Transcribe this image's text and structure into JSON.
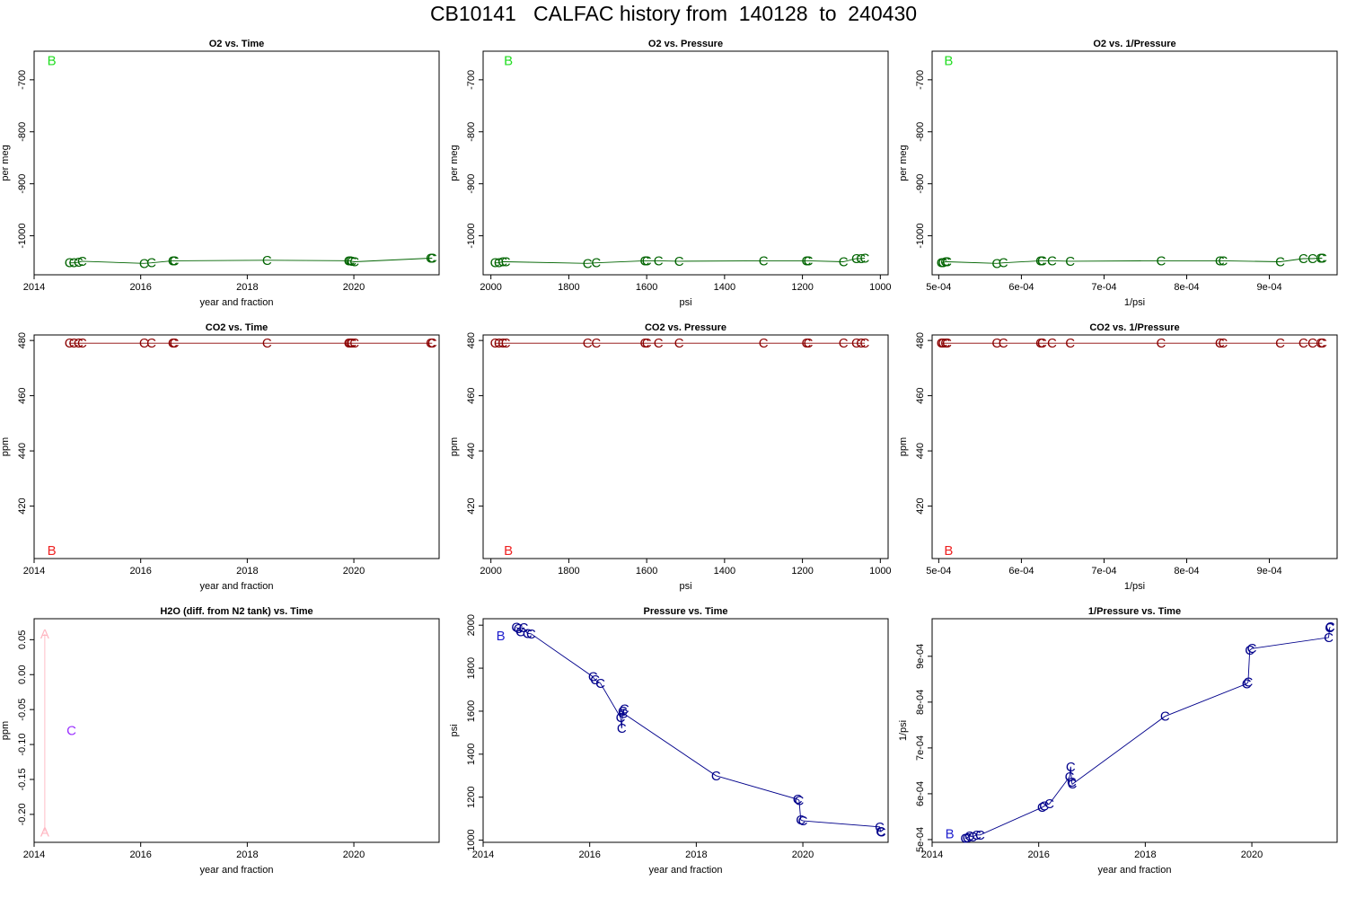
{
  "title": "CB10141   CALFAC history from  140128  to  240430",
  "chart_data": [
    {
      "id": "o2-time",
      "type": "scatter",
      "title": "O2 vs. Time",
      "xlabel": "year and fraction",
      "ylabel": "per meg",
      "xlim": [
        2014,
        2021.6
      ],
      "ylim": [
        -1075,
        -645
      ],
      "xticks": [
        2014,
        2016,
        2018,
        2020
      ],
      "yticks": [
        -700,
        -800,
        -900,
        -1000
      ],
      "rotate_ytick_labels": true,
      "color": "#006400",
      "series": [
        {
          "label": "B",
          "color": "#22dd22",
          "line": false,
          "points": [
            [
              2014.33,
              -663
            ]
          ]
        },
        {
          "label": "C",
          "line": true,
          "points": [
            [
              2014.66,
              -1052
            ],
            [
              2014.74,
              -1052
            ],
            [
              2014.83,
              -1051
            ],
            [
              2014.9,
              -1049
            ],
            [
              2016.06,
              -1053
            ],
            [
              2016.2,
              -1052
            ],
            [
              2016.6,
              -1048
            ],
            [
              2016.63,
              -1048
            ],
            [
              2018.37,
              -1047
            ],
            [
              2019.9,
              -1048
            ],
            [
              2019.93,
              -1048
            ],
            [
              2019.96,
              -1049
            ],
            [
              2020.01,
              -1050
            ],
            [
              2021.44,
              -1043
            ],
            [
              2021.47,
              -1043
            ]
          ]
        }
      ]
    },
    {
      "id": "o2-pressure",
      "type": "scatter",
      "title": "O2 vs. Pressure",
      "xlabel": "psi",
      "ylabel": "per meg",
      "xlim": [
        2020,
        980
      ],
      "ylim": [
        -1075,
        -645
      ],
      "xticks": [
        2000,
        1800,
        1600,
        1400,
        1200,
        1000
      ],
      "yticks": [
        -700,
        -800,
        -900,
        -1000
      ],
      "rotate_ytick_labels": true,
      "color": "#006400",
      "series": [
        {
          "label": "B",
          "color": "#22dd22",
          "line": false,
          "points": [
            [
              1955,
              -663
            ]
          ]
        },
        {
          "label": "C",
          "line": true,
          "points": [
            [
              1990,
              -1052
            ],
            [
              1980,
              -1052
            ],
            [
              1970,
              -1050
            ],
            [
              1962,
              -1050
            ],
            [
              1752,
              -1053
            ],
            [
              1730,
              -1052
            ],
            [
              1605,
              -1048
            ],
            [
              1600,
              -1048
            ],
            [
              1570,
              -1048
            ],
            [
              1517,
              -1049
            ],
            [
              1300,
              -1048
            ],
            [
              1190,
              -1048
            ],
            [
              1185,
              -1048
            ],
            [
              1095,
              -1050
            ],
            [
              1062,
              -1044
            ],
            [
              1050,
              -1044
            ],
            [
              1040,
              -1043
            ]
          ]
        }
      ]
    },
    {
      "id": "o2-inv-pressure",
      "type": "scatter",
      "title": "O2 vs. 1/Pressure",
      "xlabel": "1/psi",
      "ylabel": "per meg",
      "xlim": [
        0.000492,
        0.000982
      ],
      "ylim": [
        -1075,
        -645
      ],
      "xticks": [
        0.0005,
        0.0006,
        0.0007,
        0.0008,
        0.0009
      ],
      "xtick_labels": [
        "5e-04",
        "6e-04",
        "7e-04",
        "8e-04",
        "9e-04"
      ],
      "yticks": [
        -700,
        -800,
        -900,
        -1000
      ],
      "rotate_ytick_labels": true,
      "color": "#006400",
      "series": [
        {
          "label": "B",
          "color": "#22dd22",
          "line": false,
          "points": [
            [
              0.000512,
              -663
            ]
          ]
        },
        {
          "label": "C",
          "line": true,
          "points": [
            [
              0.000503,
              -1052
            ],
            [
              0.000505,
              -1052
            ],
            [
              0.000508,
              -1050
            ],
            [
              0.00051,
              -1050
            ],
            [
              0.00057,
              -1053
            ],
            [
              0.000578,
              -1052
            ],
            [
              0.000623,
              -1048
            ],
            [
              0.000625,
              -1048
            ],
            [
              0.000637,
              -1048
            ],
            [
              0.000659,
              -1049
            ],
            [
              0.000769,
              -1048
            ],
            [
              0.00084,
              -1048
            ],
            [
              0.000844,
              -1048
            ],
            [
              0.000913,
              -1050
            ],
            [
              0.000941,
              -1044
            ],
            [
              0.000952,
              -1044
            ],
            [
              0.000962,
              -1043
            ],
            [
              0.000964,
              -1043
            ]
          ]
        }
      ]
    },
    {
      "id": "co2-time",
      "type": "scatter",
      "title": "CO2 vs. Time",
      "xlabel": "year and fraction",
      "ylabel": "ppm",
      "xlim": [
        2014,
        2021.6
      ],
      "ylim": [
        401,
        482
      ],
      "xticks": [
        2014,
        2016,
        2018,
        2020
      ],
      "yticks": [
        420,
        440,
        460,
        480
      ],
      "rotate_ytick_labels": true,
      "color": "#8b0000",
      "series": [
        {
          "label": "B",
          "color": "#ee2222",
          "line": false,
          "points": [
            [
              2014.33,
              404
            ]
          ]
        },
        {
          "label": "C",
          "line": true,
          "points": [
            [
              2014.66,
              479
            ],
            [
              2014.74,
              479
            ],
            [
              2014.83,
              479
            ],
            [
              2014.9,
              479
            ],
            [
              2016.06,
              479
            ],
            [
              2016.2,
              479
            ],
            [
              2016.6,
              479
            ],
            [
              2016.63,
              479
            ],
            [
              2018.37,
              479
            ],
            [
              2019.9,
              479
            ],
            [
              2019.93,
              479
            ],
            [
              2019.96,
              479
            ],
            [
              2020.01,
              479
            ],
            [
              2021.44,
              479
            ],
            [
              2021.47,
              479
            ]
          ]
        }
      ]
    },
    {
      "id": "co2-pressure",
      "type": "scatter",
      "title": "CO2 vs. Pressure",
      "xlabel": "psi",
      "ylabel": "ppm",
      "xlim": [
        2020,
        980
      ],
      "ylim": [
        401,
        482
      ],
      "xticks": [
        2000,
        1800,
        1600,
        1400,
        1200,
        1000
      ],
      "yticks": [
        420,
        440,
        460,
        480
      ],
      "rotate_ytick_labels": true,
      "color": "#8b0000",
      "series": [
        {
          "label": "B",
          "color": "#ee2222",
          "line": false,
          "points": [
            [
              1955,
              404
            ]
          ]
        },
        {
          "label": "C",
          "line": true,
          "points": [
            [
              1990,
              479
            ],
            [
              1980,
              479
            ],
            [
              1970,
              479
            ],
            [
              1962,
              479
            ],
            [
              1752,
              479
            ],
            [
              1730,
              479
            ],
            [
              1605,
              479
            ],
            [
              1600,
              479
            ],
            [
              1570,
              479
            ],
            [
              1517,
              479
            ],
            [
              1300,
              479
            ],
            [
              1190,
              479
            ],
            [
              1185,
              479
            ],
            [
              1095,
              479
            ],
            [
              1062,
              479
            ],
            [
              1050,
              479
            ],
            [
              1040,
              479
            ]
          ]
        }
      ]
    },
    {
      "id": "co2-inv-pressure",
      "type": "scatter",
      "title": "CO2 vs. 1/Pressure",
      "xlabel": "1/psi",
      "ylabel": "ppm",
      "xlim": [
        0.000492,
        0.000982
      ],
      "ylim": [
        401,
        482
      ],
      "xticks": [
        0.0005,
        0.0006,
        0.0007,
        0.0008,
        0.0009
      ],
      "xtick_labels": [
        "5e-04",
        "6e-04",
        "7e-04",
        "8e-04",
        "9e-04"
      ],
      "yticks": [
        420,
        440,
        460,
        480
      ],
      "rotate_ytick_labels": true,
      "color": "#8b0000",
      "series": [
        {
          "label": "B",
          "color": "#ee2222",
          "line": false,
          "points": [
            [
              0.000512,
              404
            ]
          ]
        },
        {
          "label": "C",
          "line": true,
          "points": [
            [
              0.000503,
              479
            ],
            [
              0.000505,
              479
            ],
            [
              0.000508,
              479
            ],
            [
              0.00051,
              479
            ],
            [
              0.00057,
              479
            ],
            [
              0.000578,
              479
            ],
            [
              0.000623,
              479
            ],
            [
              0.000625,
              479
            ],
            [
              0.000637,
              479
            ],
            [
              0.000659,
              479
            ],
            [
              0.000769,
              479
            ],
            [
              0.00084,
              479
            ],
            [
              0.000844,
              479
            ],
            [
              0.000913,
              479
            ],
            [
              0.000941,
              479
            ],
            [
              0.000952,
              479
            ],
            [
              0.000962,
              479
            ],
            [
              0.000964,
              479
            ]
          ]
        }
      ]
    },
    {
      "id": "h2o-time",
      "type": "scatter",
      "title": "H2O (diff. from N2 tank) vs. Time",
      "xlabel": "year and fraction",
      "ylabel": "ppm",
      "xlim": [
        2014,
        2021.6
      ],
      "ylim": [
        -0.24,
        0.08
      ],
      "xticks": [
        2014,
        2016,
        2018,
        2020
      ],
      "yticks": [
        0.05,
        0.0,
        -0.05,
        -0.1,
        -0.15,
        -0.2
      ],
      "ytick_labels": [
        "0.05",
        "0.00",
        "-0.05",
        "-0.10",
        "-0.15",
        "-0.20"
      ],
      "rotate_ytick_labels": true,
      "color": "#9b30ff",
      "series": [
        {
          "label": "A",
          "color": "#ffb6c1",
          "line": true,
          "points": [
            [
              2014.2,
              0.058
            ],
            [
              2014.2,
              -0.225
            ]
          ]
        },
        {
          "label": "C",
          "color": "#9b30ff",
          "line": false,
          "points": [
            [
              2014.7,
              -0.08
            ]
          ]
        }
      ]
    },
    {
      "id": "pressure-time",
      "type": "scatter",
      "title": "Pressure vs. Time",
      "xlabel": "year and fraction",
      "ylabel": "psi",
      "xlim": [
        2014,
        2021.6
      ],
      "ylim": [
        990,
        2030
      ],
      "xticks": [
        2014,
        2016,
        2018,
        2020
      ],
      "yticks": [
        1000,
        1200,
        1400,
        1600,
        1800,
        2000
      ],
      "rotate_ytick_labels": true,
      "color": "#00008b",
      "series": [
        {
          "label": "B",
          "color": "#1e1ecd",
          "line": false,
          "points": [
            [
              2014.33,
              1950
            ]
          ]
        },
        {
          "label": "C",
          "line": true,
          "points": [
            [
              2014.62,
              1990
            ],
            [
              2014.66,
              1985
            ],
            [
              2014.7,
              1970
            ],
            [
              2014.76,
              1988
            ],
            [
              2014.83,
              1962
            ],
            [
              2014.9,
              1960
            ],
            [
              2016.06,
              1760
            ],
            [
              2016.1,
              1745
            ],
            [
              2016.2,
              1730
            ],
            [
              2016.58,
              1570
            ],
            [
              2016.6,
              1520
            ],
            [
              2016.62,
              1600
            ],
            [
              2016.65,
              1610
            ],
            [
              2016.63,
              1590
            ],
            [
              2018.37,
              1300
            ],
            [
              2019.9,
              1190
            ],
            [
              2019.93,
              1185
            ],
            [
              2019.96,
              1095
            ],
            [
              2020.0,
              1090
            ],
            [
              2021.44,
              1062
            ],
            [
              2021.46,
              1040
            ],
            [
              2021.47,
              1038
            ]
          ]
        }
      ]
    },
    {
      "id": "inv-pressure-time",
      "type": "scatter",
      "title": "1/Pressure vs. Time",
      "xlabel": "year and fraction",
      "ylabel": "1/psi",
      "xlim": [
        2014,
        2021.6
      ],
      "ylim": [
        0.000494,
        0.000982
      ],
      "xticks": [
        2014,
        2016,
        2018,
        2020
      ],
      "yticks": [
        0.0005,
        0.0006,
        0.0007,
        0.0008,
        0.0009
      ],
      "ytick_labels": [
        "5e-04",
        "6e-04",
        "7e-04",
        "8e-04",
        "9e-04"
      ],
      "rotate_ytick_labels": true,
      "color": "#00008b",
      "series": [
        {
          "label": "B",
          "color": "#1e1ecd",
          "line": false,
          "points": [
            [
              2014.33,
              0.000513
            ]
          ]
        },
        {
          "label": "C",
          "line": true,
          "points": [
            [
              2014.62,
              0.000503
            ],
            [
              2014.66,
              0.000504
            ],
            [
              2014.7,
              0.000508
            ],
            [
              2014.76,
              0.000506
            ],
            [
              2014.83,
              0.00051
            ],
            [
              2014.9,
              0.00051
            ],
            [
              2016.06,
              0.00057
            ],
            [
              2016.1,
              0.000573
            ],
            [
              2016.2,
              0.000578
            ],
            [
              2016.58,
              0.000637
            ],
            [
              2016.6,
              0.000659
            ],
            [
              2016.62,
              0.000625
            ],
            [
              2016.63,
              0.000621
            ],
            [
              2018.37,
              0.000769
            ],
            [
              2019.9,
              0.00084
            ],
            [
              2019.93,
              0.000844
            ],
            [
              2019.96,
              0.000913
            ],
            [
              2020.0,
              0.000917
            ],
            [
              2021.44,
              0.000941
            ],
            [
              2021.46,
              0.000962
            ],
            [
              2021.47,
              0.000964
            ]
          ]
        }
      ]
    }
  ]
}
